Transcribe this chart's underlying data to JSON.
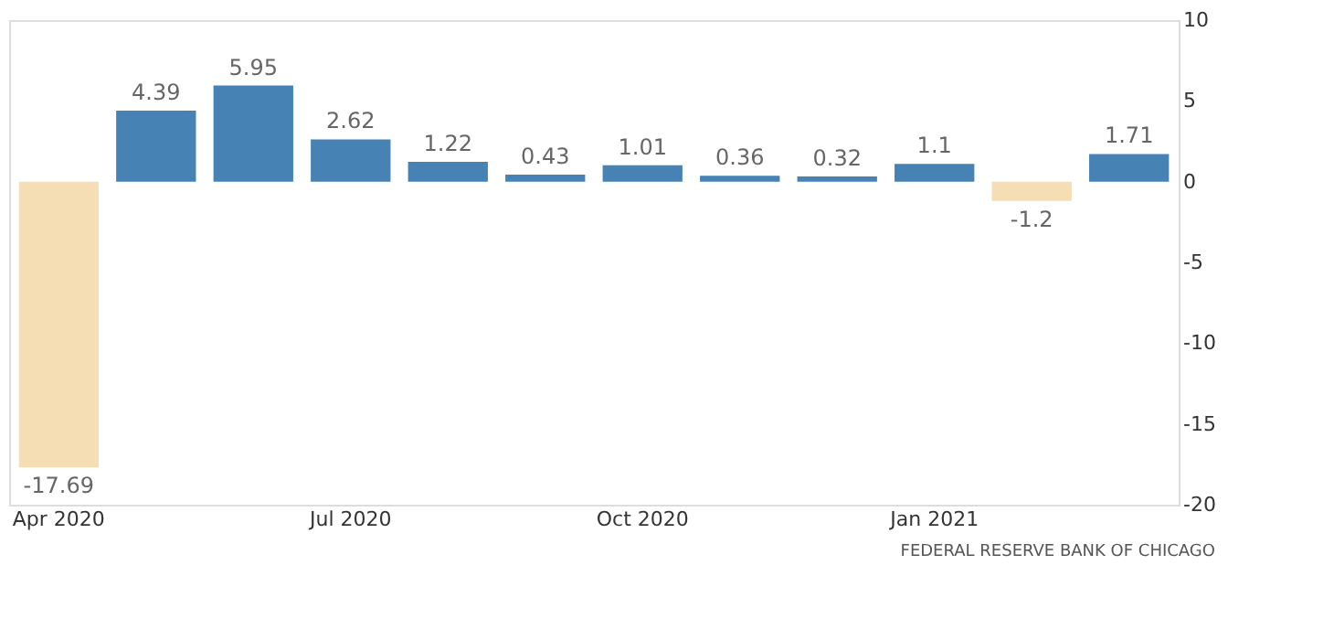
{
  "chart_data": {
    "type": "bar",
    "categories": [
      "Apr 2020",
      null,
      null,
      "Jul 2020",
      null,
      null,
      "Oct 2020",
      null,
      null,
      "Jan 2021",
      null,
      null
    ],
    "values": [
      -17.69,
      4.39,
      5.95,
      2.62,
      1.22,
      0.43,
      1.01,
      0.36,
      0.32,
      1.1,
      -1.2,
      1.71
    ],
    "colors": [
      "#f5deb3",
      "#4682b4",
      "#4682b4",
      "#4682b4",
      "#4682b4",
      "#4682b4",
      "#4682b4",
      "#4682b4",
      "#4682b4",
      "#4682b4",
      "#f5deb3",
      "#4682b4"
    ],
    "ylim": [
      -20,
      10
    ],
    "yticks": [
      -20,
      -15,
      -10,
      -5,
      0,
      5,
      10
    ],
    "data_labels": true,
    "grid": false,
    "annotations": [
      "FEDERAL RESERVE BANK OF CHICAGO"
    ]
  }
}
